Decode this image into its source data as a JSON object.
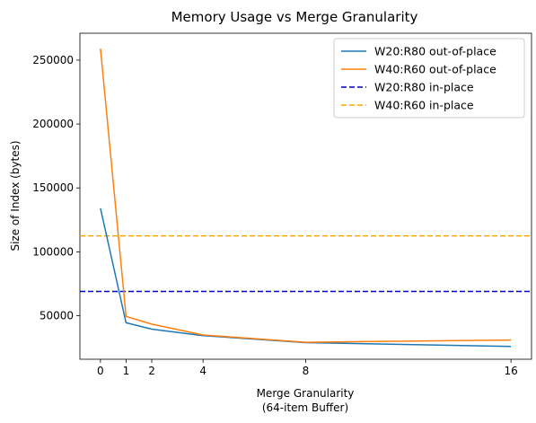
{
  "chart_data": {
    "type": "line",
    "title": "Memory Usage vs Merge Granularity",
    "xlabel": [
      "Merge Granularity",
      "(64-item Buffer)"
    ],
    "ylabel": "Size of Index (bytes)",
    "x": [
      0,
      1,
      2,
      4,
      8,
      16
    ],
    "xticks": [
      0,
      1,
      2,
      4,
      8,
      16
    ],
    "xlim": [
      -0.8,
      16.8
    ],
    "yticks": [
      50000,
      100000,
      150000,
      200000,
      250000
    ],
    "ylim": [
      16000,
      271000
    ],
    "grid": false,
    "legend_position": "top-right",
    "series": [
      {
        "name": "W20:R80 out-of-place",
        "style": "solid",
        "color": "#1f77b4",
        "values": [
          134000,
          44500,
          39500,
          34500,
          29000,
          26000
        ]
      },
      {
        "name": "W40:R60 out-of-place",
        "style": "solid",
        "color": "#ff7f0e",
        "values": [
          259000,
          49500,
          43500,
          35000,
          29300,
          31000
        ]
      }
    ],
    "hlines": [
      {
        "name": "W20:R80 in-place",
        "style": "dashed",
        "color": "#0000cc",
        "value": 69000
      },
      {
        "name": "W40:R60 in-place",
        "style": "dashed",
        "color": "#ffa500",
        "value": 112500
      }
    ]
  }
}
